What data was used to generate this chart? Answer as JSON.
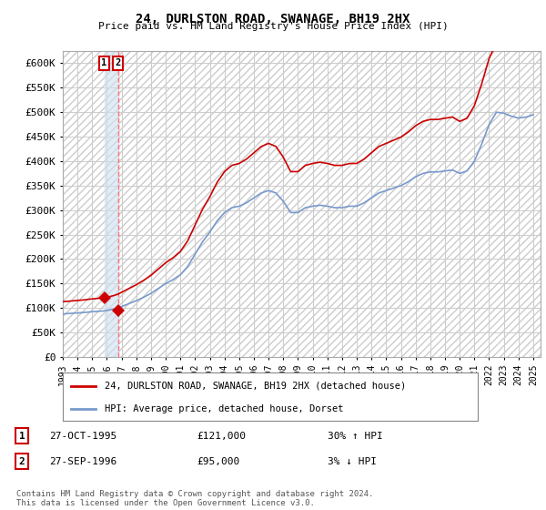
{
  "title": "24, DURLSTON ROAD, SWANAGE, BH19 2HX",
  "subtitle": "Price paid vs. HM Land Registry's House Price Index (HPI)",
  "ylabel_ticks": [
    "£0",
    "£50K",
    "£100K",
    "£150K",
    "£200K",
    "£250K",
    "£300K",
    "£350K",
    "£400K",
    "£450K",
    "£500K",
    "£550K",
    "£600K"
  ],
  "ytick_values": [
    0,
    50000,
    100000,
    150000,
    200000,
    250000,
    300000,
    350000,
    400000,
    450000,
    500000,
    550000,
    600000
  ],
  "ylim": [
    0,
    625000
  ],
  "xlim_start": 1993.0,
  "xlim_end": 2025.5,
  "sale1_x": 1995.82,
  "sale1_y": 121000,
  "sale2_x": 1996.75,
  "sale2_y": 95000,
  "sale1_label": "1",
  "sale2_label": "2",
  "vline1_color": "#aaaadd",
  "vline2_color": "#ff6666",
  "marker_color": "#cc0000",
  "hpi_color": "#7799cc",
  "sold_color": "#cc0000",
  "legend_sold_label": "24, DURLSTON ROAD, SWANAGE, BH19 2HX (detached house)",
  "legend_hpi_label": "HPI: Average price, detached house, Dorset",
  "annotation1_date": "27-OCT-1995",
  "annotation1_price": "£121,000",
  "annotation1_hpi": "30% ↑ HPI",
  "annotation2_date": "27-SEP-1996",
  "annotation2_price": "£95,000",
  "annotation2_hpi": "3% ↓ HPI",
  "footer": "Contains HM Land Registry data © Crown copyright and database right 2024.\nThis data is licensed under the Open Government Licence v3.0.",
  "background_color": "#ffffff",
  "grid_color": "#cccccc",
  "hpi_raw": [
    88000,
    88500,
    89000,
    89500,
    90000,
    90500,
    91000,
    91800,
    92500,
    93000,
    93500,
    94000,
    95000,
    96500,
    98000,
    100000,
    103000,
    106000,
    109000,
    112000,
    115000,
    118500,
    122000,
    126000,
    130000,
    135000,
    140000,
    145000,
    150000,
    154000,
    158000,
    163000,
    168000,
    176500,
    185000,
    197500,
    210000,
    222500,
    235000,
    245000,
    255000,
    266500,
    278000,
    286500,
    295000,
    300000,
    305000,
    306500,
    308000,
    311500,
    315000,
    320000,
    325000,
    330000,
    335000,
    337500,
    340000,
    337500,
    335000,
    326500,
    318000,
    306500,
    295000,
    295000,
    295000,
    300000,
    305000,
    306500,
    308000,
    309000,
    310000,
    309000,
    308000,
    306500,
    305000,
    305000,
    305000,
    306500,
    308000,
    308000,
    308000,
    311500,
    315000,
    320000,
    325000,
    330000,
    335000,
    337500,
    340000,
    342500,
    345000,
    347500,
    350000,
    354000,
    358000,
    363000,
    368000,
    371500,
    375000,
    376500,
    378000,
    378000,
    378000,
    379000,
    380000,
    381000,
    382000,
    378500,
    375000,
    377500,
    380000,
    390000,
    400000,
    417500,
    435000,
    455000,
    475000,
    487500,
    500000,
    499000,
    498000,
    495000,
    492000,
    490000,
    488000,
    489000,
    490000,
    492000,
    495000
  ],
  "hpi_years_start": 1993.0,
  "hpi_years_step": 0.25
}
